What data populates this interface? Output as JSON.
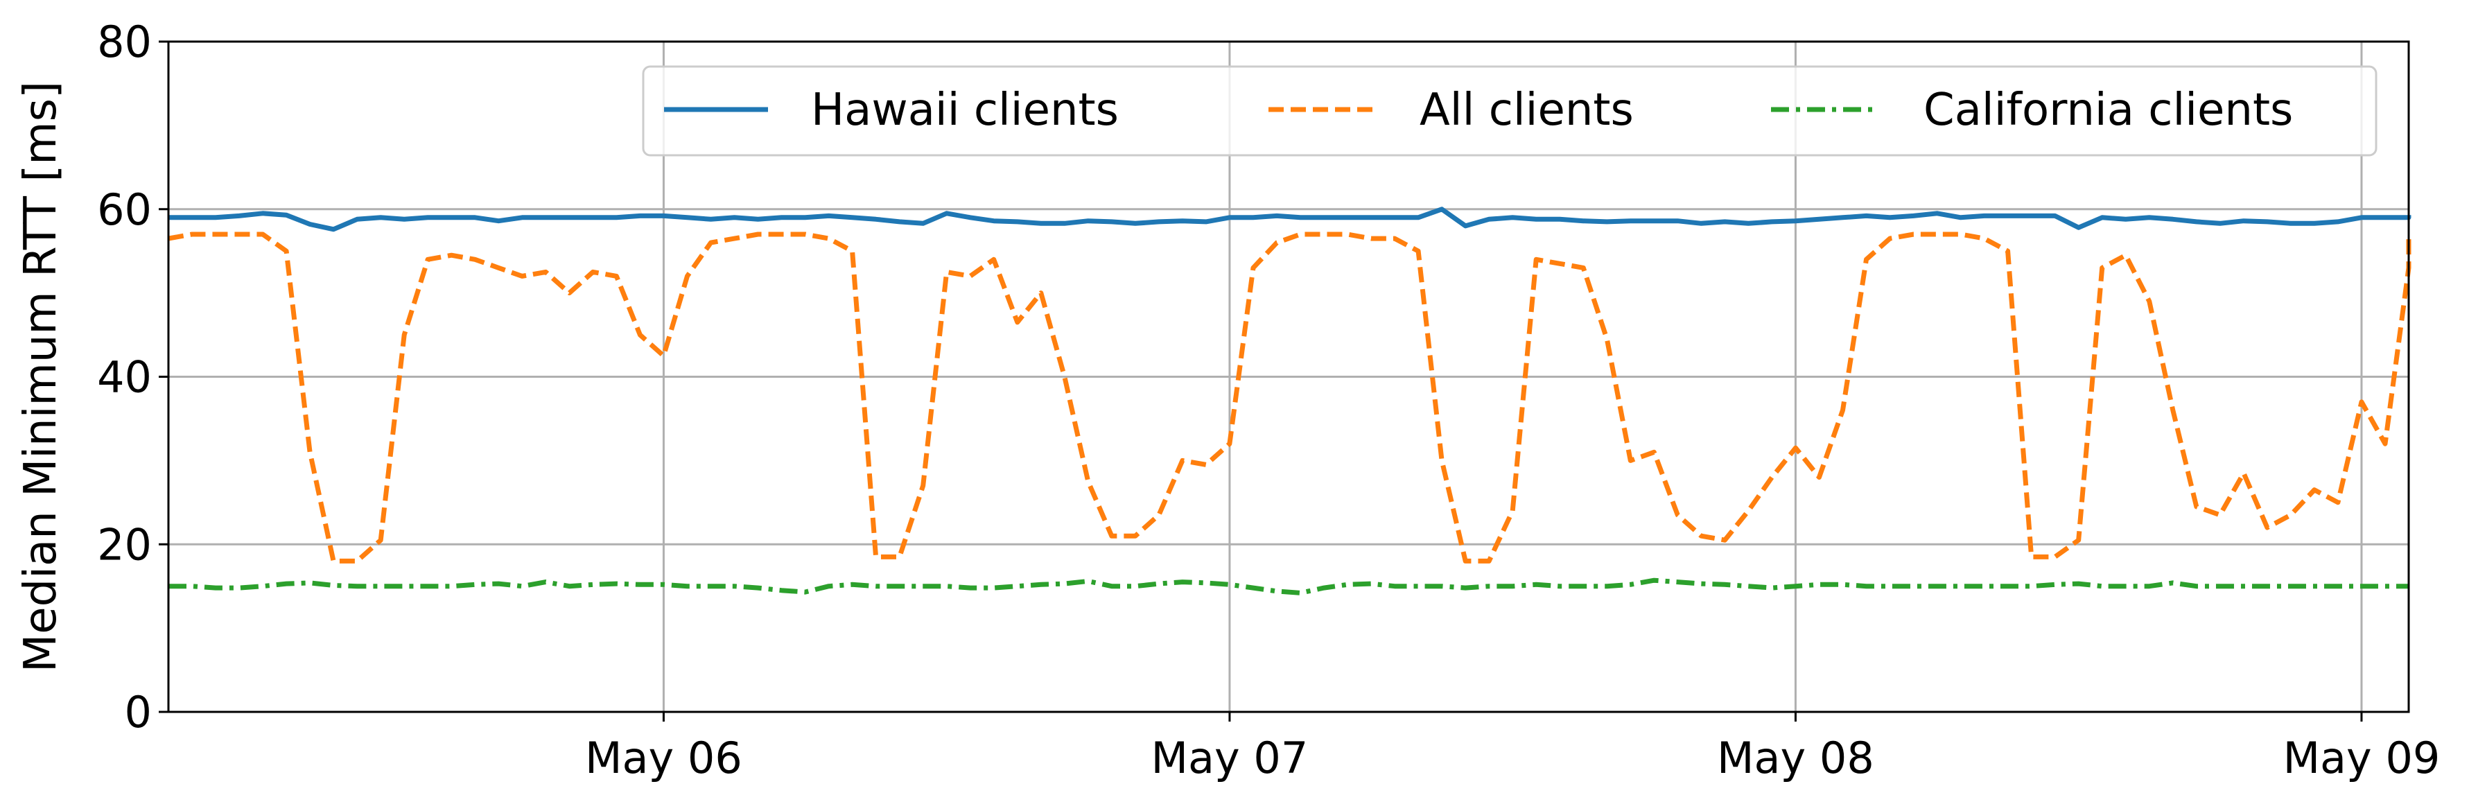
{
  "chart_data": {
    "type": "line",
    "ylabel": "Median Minimum RTT [ms]",
    "xlabel": "",
    "ylim": [
      0,
      80
    ],
    "yticks": [
      0,
      20,
      40,
      60,
      80
    ],
    "xlim": [
      "2025-05-05T03:00",
      "2025-05-09T02:00"
    ],
    "xticks": [
      {
        "value": "2025-05-06T00:00",
        "label": "May 06"
      },
      {
        "value": "2025-05-07T00:00",
        "label": "May 07"
      },
      {
        "value": "2025-05-08T00:00",
        "label": "May 08"
      },
      {
        "value": "2025-05-09T00:00",
        "label": "May 09"
      }
    ],
    "grid": true,
    "legend_position": "top-right",
    "x_start": "2025-05-05T03:00",
    "x_step_hours": 1,
    "series": [
      {
        "name": "Hawaii clients",
        "color": "#1f77b4",
        "style": "solid",
        "values": [
          59.0,
          59.0,
          59.0,
          59.2,
          59.5,
          59.3,
          58.2,
          57.6,
          58.8,
          59.0,
          58.8,
          59.0,
          59.0,
          59.0,
          58.6,
          59.0,
          59.0,
          59.0,
          59.0,
          59.0,
          59.2,
          59.2,
          59.0,
          58.8,
          59.0,
          58.8,
          59.0,
          59.0,
          59.2,
          59.0,
          58.8,
          58.5,
          58.3,
          59.5,
          59.0,
          58.6,
          58.5,
          58.3,
          58.3,
          58.6,
          58.5,
          58.3,
          58.5,
          58.6,
          58.5,
          59.0,
          59.0,
          59.2,
          59.0,
          59.0,
          59.0,
          59.0,
          59.0,
          59.0,
          60.0,
          58.0,
          58.8,
          59.0,
          58.8,
          58.8,
          58.6,
          58.5,
          58.6,
          58.6,
          58.6,
          58.3,
          58.5,
          58.3,
          58.5,
          58.6,
          58.8,
          59.0,
          59.2,
          59.0,
          59.2,
          59.5,
          59.0,
          59.2,
          59.2,
          59.2,
          59.2,
          57.8,
          59.0,
          58.8,
          59.0,
          58.8,
          58.5,
          58.3,
          58.6,
          58.5,
          58.3,
          58.3,
          58.5,
          59.0,
          59.0,
          59.0,
          59.0,
          59.0,
          59.0,
          59.3
        ]
      },
      {
        "name": "All clients",
        "color": "#ff7f0e",
        "style": "dashed",
        "values": [
          56.5,
          57.0,
          57.0,
          57.0,
          57.0,
          55.0,
          31.0,
          18.0,
          18.0,
          20.5,
          45.0,
          54.0,
          54.5,
          54.0,
          53.0,
          52.0,
          52.5,
          50.0,
          52.5,
          52.0,
          45.0,
          42.5,
          52.0,
          56.0,
          56.5,
          57.0,
          57.0,
          57.0,
          56.5,
          55.0,
          18.5,
          18.5,
          27.0,
          52.5,
          52.0,
          54.0,
          46.5,
          50.0,
          40.0,
          27.5,
          21.0,
          21.0,
          23.5,
          30.0,
          29.5,
          32.0,
          53.0,
          56.0,
          57.0,
          57.0,
          57.0,
          56.5,
          56.5,
          55.0,
          30.0,
          18.0,
          18.0,
          24.0,
          54.0,
          53.5,
          53.0,
          44.5,
          30.0,
          31.0,
          23.5,
          21.0,
          20.5,
          24.0,
          28.0,
          31.5,
          28.0,
          36.0,
          54.0,
          56.5,
          57.0,
          57.0,
          57.0,
          56.5,
          55.0,
          18.5,
          18.5,
          20.5,
          53.0,
          54.5,
          49.0,
          36.0,
          24.5,
          23.5,
          28.5,
          22.0,
          23.5,
          26.5,
          25.0,
          37.0,
          32.0,
          53.0,
          55.5,
          57.0,
          57.0,
          57.0
        ]
      },
      {
        "name": "California clients",
        "color": "#2ca02c",
        "style": "dashdot",
        "values": [
          15.0,
          15.0,
          14.8,
          14.8,
          15.0,
          15.3,
          15.4,
          15.1,
          15.0,
          15.0,
          15.0,
          15.0,
          15.0,
          15.2,
          15.3,
          15.0,
          15.5,
          15.0,
          15.2,
          15.3,
          15.2,
          15.2,
          15.0,
          15.0,
          15.0,
          14.8,
          14.5,
          14.3,
          15.0,
          15.2,
          15.0,
          15.0,
          15.0,
          15.0,
          14.8,
          14.8,
          15.0,
          15.2,
          15.3,
          15.6,
          15.0,
          15.0,
          15.3,
          15.5,
          15.4,
          15.2,
          14.8,
          14.4,
          14.2,
          14.8,
          15.2,
          15.3,
          15.0,
          15.0,
          15.0,
          14.8,
          15.0,
          15.0,
          15.2,
          15.0,
          15.0,
          15.0,
          15.2,
          15.7,
          15.5,
          15.3,
          15.2,
          15.0,
          14.8,
          15.0,
          15.2,
          15.2,
          15.0,
          15.0,
          15.0,
          15.0,
          15.0,
          15.0,
          15.0,
          15.0,
          15.2,
          15.3,
          15.0,
          15.0,
          15.0,
          15.4,
          15.0,
          15.0,
          15.0,
          15.0,
          15.0,
          15.0,
          15.0,
          15.0,
          15.0,
          15.0,
          15.0,
          15.0,
          15.0,
          15.0
        ]
      }
    ]
  }
}
